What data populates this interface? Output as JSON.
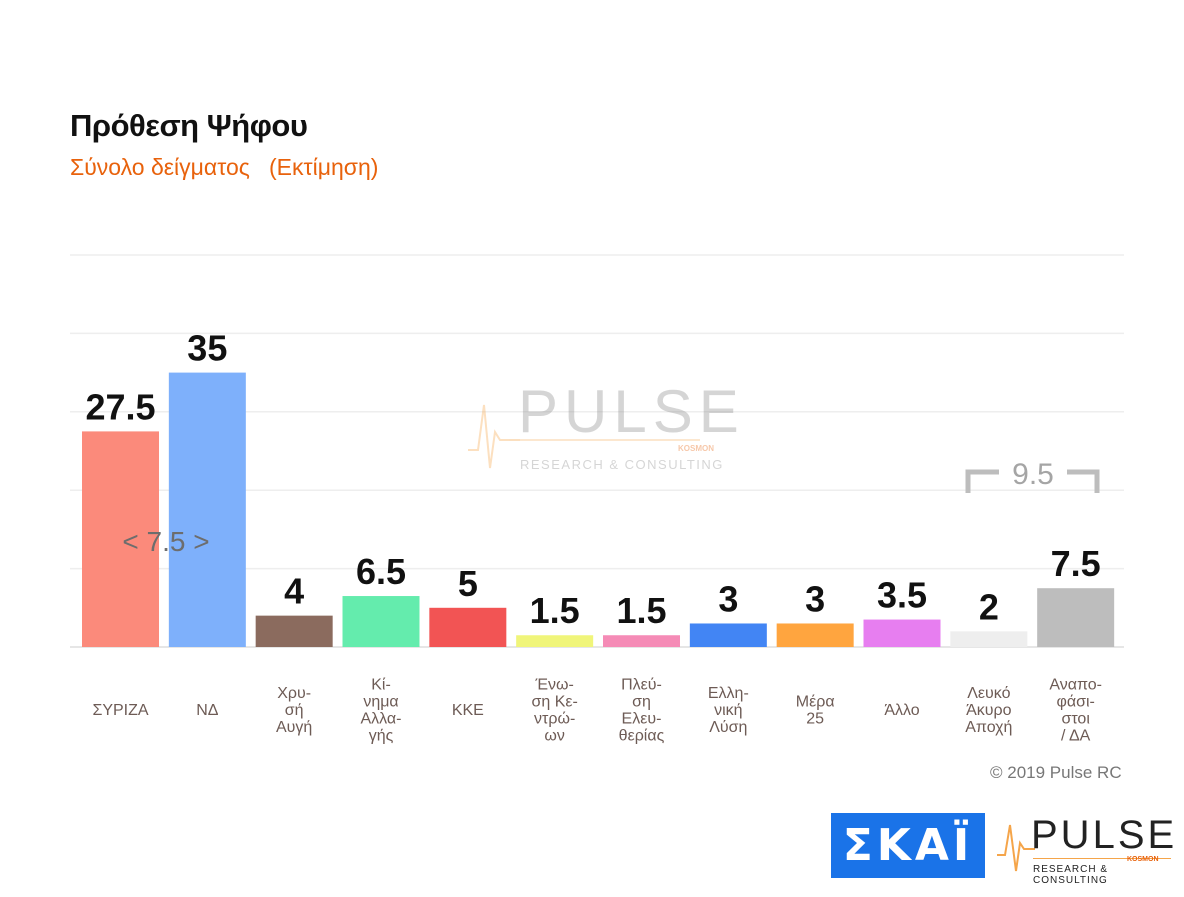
{
  "header": {
    "title": "Πρόθεση Ψήφου",
    "subtitle": "Σύνολο δείγματος   (Εκτίμηση)"
  },
  "watermark": {
    "brand": "PULSE",
    "kosmon": "KOSMON",
    "tagline": "RESEARCH & CONSULTING"
  },
  "chart_data": {
    "type": "bar",
    "categories": [
      "ΣΥΡΙΖΑ",
      "ΝΔ",
      "Χρυ-\nσή\nΑυγή",
      "Κί-\nνημα\nΑλλα-\nγής",
      "ΚΚΕ",
      "Ένω-\nση Κε-\nντρώ-\nων",
      "Πλεύ-\nση\nΕλευ-\nθερίας",
      "Ελλη-\nνική\nΛύση",
      "Μέρα\n25",
      "Άλλο",
      "Λευκό\nΆκυρο\nΑποχή",
      "Αναπο-\nφάσι-\nστοι\n/ ΔΑ"
    ],
    "values": [
      27.5,
      35,
      4,
      6.5,
      5,
      1.5,
      1.5,
      3,
      3,
      3.5,
      2,
      7.5
    ],
    "value_labels": [
      "27.5",
      "35",
      "4",
      "6.5",
      "5",
      "1.5",
      "1.5",
      "3",
      "3",
      "3.5",
      "2",
      "7.5"
    ],
    "colors": [
      "#fb8a7b",
      "#7eb0fb",
      "#8b6b5e",
      "#64ecad",
      "#f25454",
      "#f0f57a",
      "#f58bb6",
      "#4285f4",
      "#ffa53f",
      "#e77ef0",
      "#eeeeee",
      "#bdbdbd"
    ],
    "ylim": [
      0,
      50
    ],
    "grid": true,
    "annotations": {
      "lead_gap": "< 7.5 >",
      "bracket_total": "9.5"
    }
  },
  "footer": {
    "copyright": "© 2019 Pulse RC",
    "skai_logo": "ΣΚΑΪ",
    "pulse_brand": "PULSE",
    "pulse_kosmon": "KOSMON",
    "pulse_tagline": "RESEARCH & CONSULTING"
  }
}
